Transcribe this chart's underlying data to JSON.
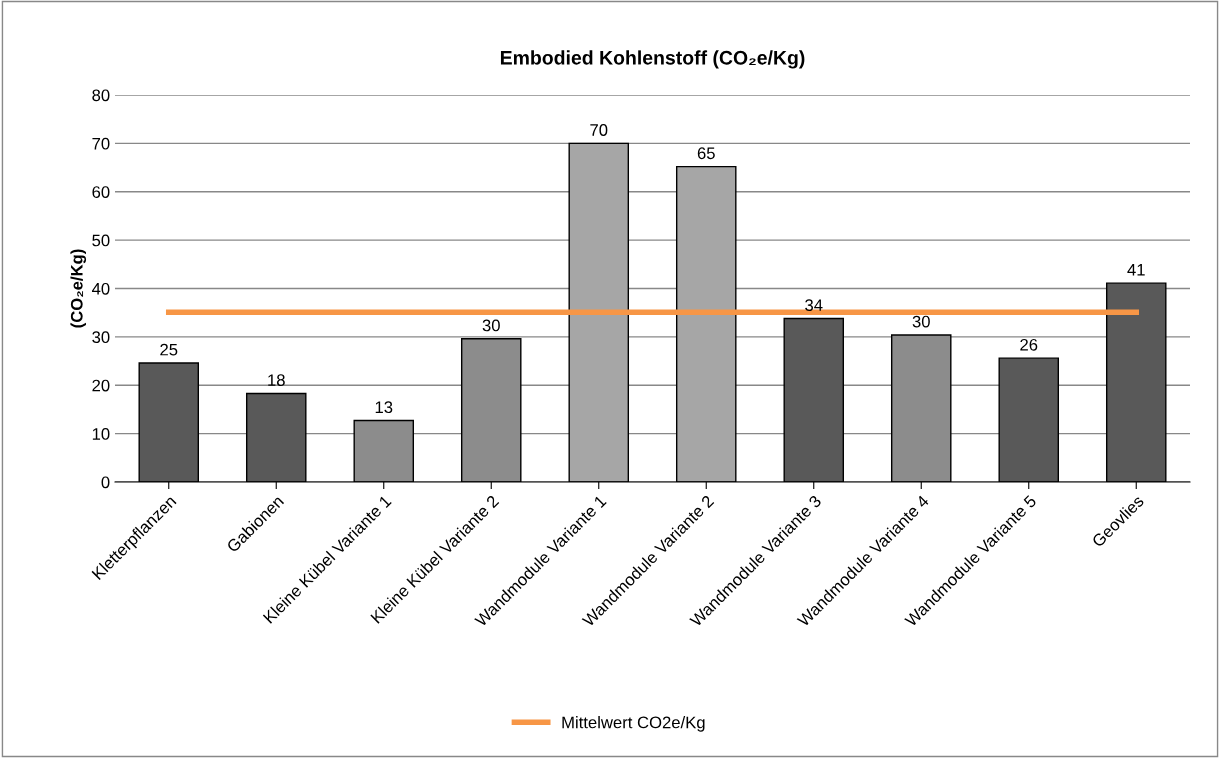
{
  "chart_data": {
    "type": "bar",
    "title": "Embodied Kohlenstoff (CO₂e/Kg)",
    "ylabel": "(CO₂e/Kg)",
    "categories": [
      "Kletterpflanzen",
      "Gabionen",
      "Kleine Kübel Variante 1",
      "Kleine Kübel Variante 2",
      "Wandmodule Variante 1",
      "Wandmodule Variante 2",
      "Wandmodule Variante 3",
      "Wandmodule Variante 4",
      "Wandmodule Variante 5",
      "Geovlies"
    ],
    "series": [
      {
        "colors": [
          "#595959",
          "#595959",
          "#8c8c8c",
          "#8c8c8c",
          "#a6a6a6",
          "#a6a6a6",
          "#595959",
          "#8c8c8c",
          "#595959",
          "#595959"
        ],
        "values": [
          24.6,
          18.3,
          12.7,
          29.6,
          70,
          65.2,
          33.8,
          30.4,
          25.6,
          41.1
        ],
        "value_labels": [
          "25",
          "18",
          "13",
          "30",
          "70",
          "65",
          "34",
          "30",
          "26",
          "41"
        ]
      },
      {
        "type": "line",
        "name": "Mittelwert CO2e/Kg",
        "color": "#f79646",
        "values": [
          35.1,
          35.1,
          35.1,
          35.1,
          35.1,
          35.1,
          35.1,
          35.1,
          35.1,
          35.1
        ]
      }
    ],
    "ylim": [
      0,
      80
    ],
    "yticks": [
      0,
      10,
      20,
      30,
      40,
      50,
      60,
      70,
      80
    ],
    "grid": "y",
    "legend": "bottom",
    "marker": "none",
    "line_style": "solid"
  }
}
